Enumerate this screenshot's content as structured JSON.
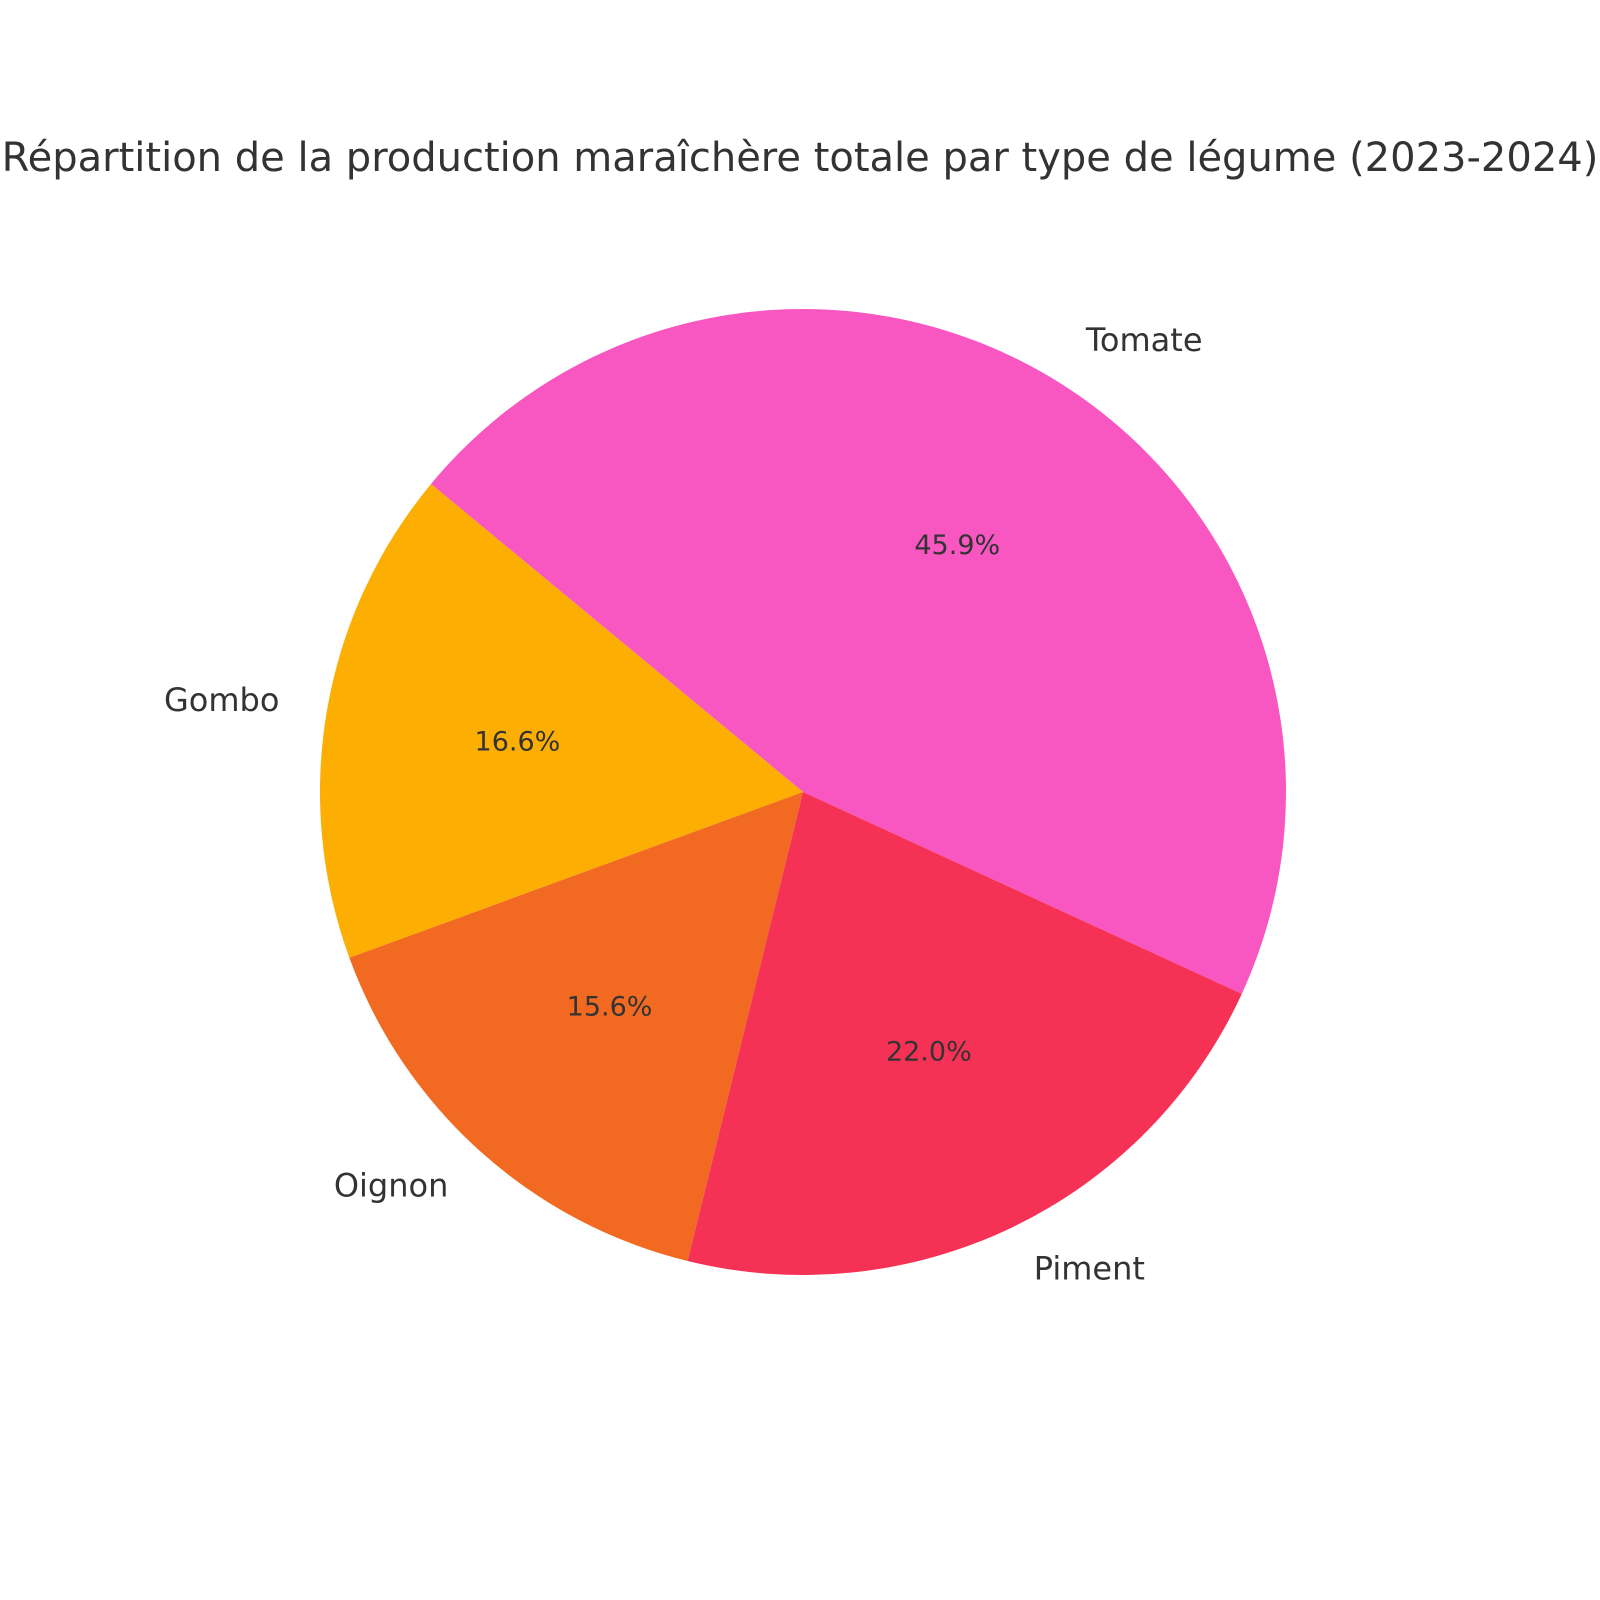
{
  "chart_data": {
    "type": "pie",
    "title": "Répartition de la production maraîchère totale par type de légume (2023-2024)",
    "categories": [
      "Tomate",
      "Gombo",
      "Oignon",
      "Piment"
    ],
    "values": [
      45.9,
      16.6,
      15.6,
      22.0
    ],
    "value_labels": [
      "45.9%",
      "16.6%",
      "15.6%",
      "22.0%"
    ],
    "colors": [
      "#f857c1",
      "#fdae03",
      "#f26a22",
      "#f53255"
    ]
  }
}
